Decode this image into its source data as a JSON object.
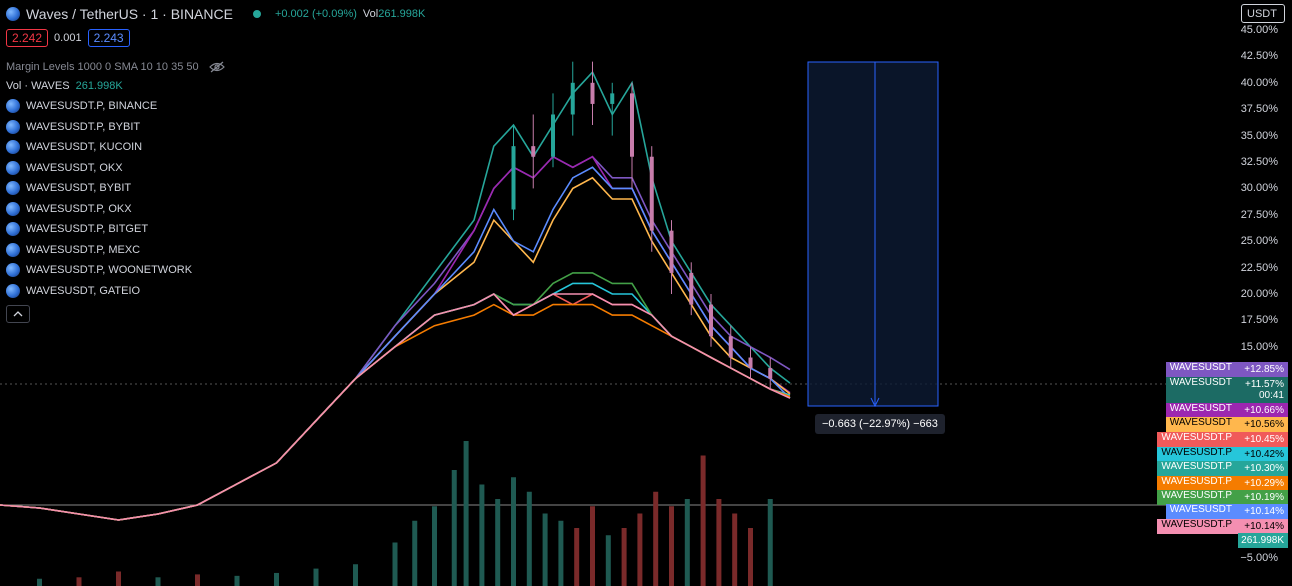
{
  "header": {
    "symbol_title": "Waves / TetherUS · 1 · BINANCE",
    "change": "+0.002 (+0.09%)",
    "vol_label": "Vol",
    "vol_value": "261.998K",
    "sell_price": "2.242",
    "spread": "0.001",
    "buy_price": "2.243",
    "indicator": "Margin Levels 1000 0 SMA 10 10 35 50",
    "volume_indicator_label": "Vol · WAVES",
    "volume_indicator_value": "261.998K",
    "visibility_icon": "eye-off-icon",
    "collapse_icon": "chevron-up-icon"
  },
  "currency_button": "USDT",
  "compare_symbols": [
    "WAVESUSDT.P, BINANCE",
    "WAVESUSDT.P, BYBIT",
    "WAVESUSDT, KUCOIN",
    "WAVESUSDT, OKX",
    "WAVESUSDT, BYBIT",
    "WAVESUSDT.P, OKX",
    "WAVESUSDT.P, BITGET",
    "WAVESUSDT.P, MEXC",
    "WAVESUSDT.P, WOONETWORK",
    "WAVESUSDT, GATEIO"
  ],
  "measure_label": "−0.663 (−22.97%) −663",
  "price_tags": [
    {
      "name": "WAVESUSDT",
      "value": "+12.85%",
      "color": "#7e57c2",
      "text": "#ffffff"
    },
    {
      "name": "WAVESUSDT",
      "value": "+11.57%",
      "value2": "00:41",
      "color": "#1c6b64",
      "text": "#ffffff"
    },
    {
      "name": "WAVESUSDT",
      "value": "+10.66%",
      "color": "#9c27b0",
      "text": "#ffffff"
    },
    {
      "name": "WAVESUSDT",
      "value": "+10.56%",
      "color": "#ffb74d",
      "text": "#000000"
    },
    {
      "name": "WAVESUSDT.P",
      "value": "+10.45%",
      "color": "#f05a5a",
      "text": "#ffffff"
    },
    {
      "name": "WAVESUSDT.P",
      "value": "+10.42%",
      "color": "#26c6da",
      "text": "#000000"
    },
    {
      "name": "WAVESUSDT.P",
      "value": "+10.30%",
      "color": "#26a69a",
      "text": "#ffffff"
    },
    {
      "name": "WAVESUSDT.P",
      "value": "+10.29%",
      "color": "#f57c00",
      "text": "#ffffff"
    },
    {
      "name": "WAVESUSDT.P",
      "value": "+10.19%",
      "color": "#43a047",
      "text": "#ffffff"
    },
    {
      "name": "WAVESUSDT",
      "value": "+10.14%",
      "color": "#5b8cff",
      "text": "#ffffff"
    },
    {
      "name": "WAVESUSDT.P",
      "value": "+10.14%",
      "color": "#f48fb1",
      "text": "#000000"
    }
  ],
  "volume_tag": "261.998K",
  "colors": {
    "up": "#26a69a",
    "down": "#ef5350",
    "vol_up": "#1f5a52",
    "vol_down": "#7a2a2a",
    "measure": "#2962ff"
  },
  "chart_data": {
    "type": "line",
    "y_axis_unit": "percent",
    "y_ticks": [
      "45.00%",
      "42.50%",
      "40.00%",
      "37.50%",
      "35.00%",
      "32.50%",
      "30.00%",
      "27.50%",
      "25.00%",
      "22.50%",
      "20.00%",
      "17.50%",
      "15.00%",
      "−5.00%"
    ],
    "ylim": [
      -6,
      46
    ],
    "grid": false,
    "legend": "top-left",
    "x": [
      0,
      10,
      20,
      30,
      40,
      50,
      60,
      70,
      80,
      90,
      100,
      110,
      120,
      125,
      130,
      135,
      140,
      145,
      150,
      155,
      160,
      165,
      170,
      175,
      180,
      185,
      190,
      195,
      200
    ],
    "series": [
      {
        "color": "#26a69a",
        "values": [
          0,
          -0.5,
          -1.5,
          -2.5,
          -1.5,
          0,
          2,
          4,
          8,
          12,
          17,
          22,
          27,
          34,
          36,
          33,
          36,
          39,
          41,
          37,
          40,
          31,
          25,
          22,
          19,
          17,
          15,
          13,
          11.57
        ]
      },
      {
        "color": "#7e57c2",
        "values": [
          0,
          -0.5,
          -1.5,
          -2.5,
          -1.5,
          0,
          2,
          4,
          8,
          12,
          17,
          21,
          26,
          30,
          32,
          31,
          33,
          32,
          33,
          31,
          31,
          27,
          24,
          21,
          18,
          16,
          15,
          14,
          12.85
        ]
      },
      {
        "color": "#9c27b0",
        "values": [
          0,
          -0.5,
          -1.5,
          -2.5,
          -1.5,
          0,
          2,
          4,
          8,
          12,
          16,
          20,
          26,
          30,
          32,
          31,
          33,
          32,
          33,
          30,
          30,
          26,
          23,
          20,
          17,
          15,
          13,
          12,
          10.66
        ]
      },
      {
        "color": "#ffb74d",
        "values": [
          0,
          -0.5,
          -1.5,
          -2.5,
          -1.5,
          0,
          2,
          4,
          8,
          12,
          16,
          20,
          23,
          27,
          25,
          23,
          27,
          30,
          31,
          29,
          29,
          25,
          22,
          19,
          16,
          14,
          13,
          12,
          10.56
        ]
      },
      {
        "color": "#5b8cff",
        "values": [
          0,
          -0.5,
          -1.5,
          -2.5,
          -1.5,
          0,
          2,
          4,
          8,
          12,
          16,
          20,
          24,
          28,
          25,
          24,
          28,
          31,
          32,
          30,
          30,
          26,
          23,
          20,
          17,
          15,
          13,
          12,
          10.14
        ]
      },
      {
        "color": "#f05a5a",
        "values": [
          0,
          -0.5,
          -1.5,
          -2.5,
          -1.5,
          0,
          2,
          4,
          8,
          12,
          15,
          18,
          19,
          20,
          18,
          19,
          20,
          19,
          20,
          19,
          19,
          18,
          16,
          15,
          14,
          13,
          12,
          11,
          10.45
        ]
      },
      {
        "color": "#26c6da",
        "values": [
          0,
          -0.5,
          -1.5,
          -2.5,
          -1.5,
          0,
          2,
          4,
          8,
          12,
          15,
          18,
          19,
          20,
          19,
          19,
          20,
          21,
          21,
          20,
          20,
          18,
          16,
          15,
          14,
          13,
          12,
          11,
          10.42
        ]
      },
      {
        "color": "#43a047",
        "values": [
          0,
          -0.5,
          -1.5,
          -2.5,
          -1.5,
          0,
          2,
          4,
          8,
          12,
          15,
          18,
          19,
          20,
          19,
          19,
          21,
          22,
          22,
          21,
          21,
          18,
          16,
          15,
          14,
          13,
          12,
          11,
          10.19
        ]
      },
      {
        "color": "#f57c00",
        "values": [
          0,
          -0.5,
          -1.5,
          -2.5,
          -1.5,
          0,
          2,
          4,
          8,
          12,
          15,
          17,
          18,
          19,
          18,
          18,
          19,
          19,
          19,
          18,
          18,
          17,
          16,
          15,
          14,
          13,
          12,
          11,
          10.29
        ]
      },
      {
        "color": "#f48fb1",
        "values": [
          0,
          -0.5,
          -1.5,
          -2.5,
          -1.5,
          0,
          2,
          4,
          8,
          12,
          15,
          18,
          19,
          20,
          18,
          19,
          20,
          20,
          20,
          19,
          19,
          18,
          16,
          15,
          14,
          13,
          12,
          11,
          10.14
        ]
      }
    ],
    "candles": [
      {
        "x": 130,
        "o": 28,
        "c": 34,
        "h": 36,
        "l": 27
      },
      {
        "x": 135,
        "o": 34,
        "c": 33,
        "h": 37,
        "l": 30
      },
      {
        "x": 140,
        "o": 33,
        "c": 37,
        "h": 39,
        "l": 32
      },
      {
        "x": 145,
        "o": 37,
        "c": 40,
        "h": 42,
        "l": 35
      },
      {
        "x": 150,
        "o": 40,
        "c": 38,
        "h": 42,
        "l": 36
      },
      {
        "x": 155,
        "o": 38,
        "c": 39,
        "h": 40,
        "l": 35
      },
      {
        "x": 160,
        "o": 39,
        "c": 33,
        "h": 40,
        "l": 30
      },
      {
        "x": 165,
        "o": 33,
        "c": 26,
        "h": 34,
        "l": 24
      },
      {
        "x": 170,
        "o": 26,
        "c": 22,
        "h": 27,
        "l": 20
      },
      {
        "x": 175,
        "o": 22,
        "c": 19,
        "h": 23,
        "l": 18
      },
      {
        "x": 180,
        "o": 19,
        "c": 16,
        "h": 20,
        "l": 15
      },
      {
        "x": 185,
        "o": 16,
        "c": 14,
        "h": 17,
        "l": 13
      },
      {
        "x": 190,
        "o": 14,
        "c": 13,
        "h": 15,
        "l": 12
      },
      {
        "x": 195,
        "o": 13,
        "c": 12,
        "h": 14,
        "l": 11
      }
    ],
    "volume": [
      {
        "x": 10,
        "v": 0.05,
        "up": true
      },
      {
        "x": 20,
        "v": 0.06,
        "up": false
      },
      {
        "x": 30,
        "v": 0.1,
        "up": false
      },
      {
        "x": 40,
        "v": 0.06,
        "up": true
      },
      {
        "x": 50,
        "v": 0.08,
        "up": false
      },
      {
        "x": 60,
        "v": 0.07,
        "up": true
      },
      {
        "x": 70,
        "v": 0.09,
        "up": true
      },
      {
        "x": 80,
        "v": 0.12,
        "up": true
      },
      {
        "x": 90,
        "v": 0.15,
        "up": true
      },
      {
        "x": 100,
        "v": 0.3,
        "up": true
      },
      {
        "x": 105,
        "v": 0.45,
        "up": true
      },
      {
        "x": 110,
        "v": 0.55,
        "up": true
      },
      {
        "x": 115,
        "v": 0.8,
        "up": true
      },
      {
        "x": 118,
        "v": 1.0,
        "up": true
      },
      {
        "x": 122,
        "v": 0.7,
        "up": true
      },
      {
        "x": 126,
        "v": 0.6,
        "up": true
      },
      {
        "x": 130,
        "v": 0.75,
        "up": true
      },
      {
        "x": 134,
        "v": 0.65,
        "up": true
      },
      {
        "x": 138,
        "v": 0.5,
        "up": true
      },
      {
        "x": 142,
        "v": 0.45,
        "up": true
      },
      {
        "x": 146,
        "v": 0.4,
        "up": false
      },
      {
        "x": 150,
        "v": 0.55,
        "up": false
      },
      {
        "x": 154,
        "v": 0.35,
        "up": true
      },
      {
        "x": 158,
        "v": 0.4,
        "up": false
      },
      {
        "x": 162,
        "v": 0.5,
        "up": false
      },
      {
        "x": 166,
        "v": 0.65,
        "up": false
      },
      {
        "x": 170,
        "v": 0.55,
        "up": false
      },
      {
        "x": 174,
        "v": 0.6,
        "up": true
      },
      {
        "x": 178,
        "v": 0.9,
        "up": false
      },
      {
        "x": 182,
        "v": 0.6,
        "up": false
      },
      {
        "x": 186,
        "v": 0.5,
        "up": false
      },
      {
        "x": 190,
        "v": 0.4,
        "up": false
      },
      {
        "x": 195,
        "v": 0.6,
        "up": true
      }
    ]
  }
}
